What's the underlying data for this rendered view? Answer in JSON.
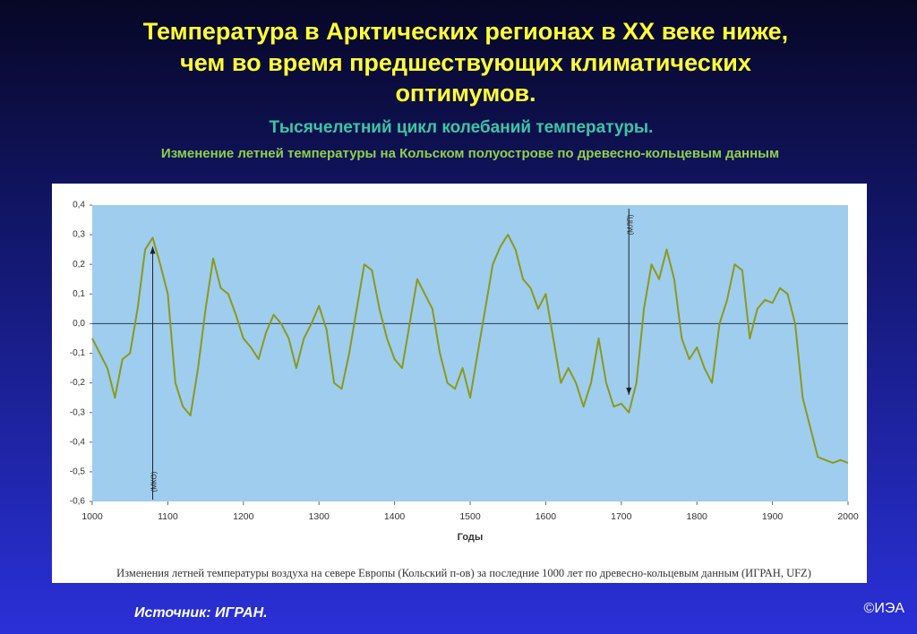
{
  "chart_data": {
    "type": "line",
    "title": [
      "Температура в Арктических регионах в XX веке ниже,",
      "чем во время предшествующих климатических",
      "оптимумов."
    ],
    "subtitle": "Тысячелетний цикл колебаний температуры.",
    "subtitle2": "Изменение летней температуры на Кольском полуострове по древесно-кольцевым данным",
    "xlabel": "Годы",
    "caption": "Изменения летней температуры воздуха на севере Европы (Кольский п-ов) за последние 1000 лет по древесно-кольцевым данным (ИГРАН, UFZ)",
    "source": "Источник: ИГРАН.",
    "copyright": "©ИЭА",
    "x": [
      1000,
      1010,
      1020,
      1030,
      1040,
      1050,
      1060,
      1070,
      1080,
      1090,
      1100,
      1110,
      1120,
      1130,
      1140,
      1150,
      1160,
      1170,
      1180,
      1190,
      1200,
      1210,
      1220,
      1230,
      1240,
      1250,
      1260,
      1270,
      1280,
      1290,
      1300,
      1310,
      1320,
      1330,
      1340,
      1350,
      1360,
      1370,
      1380,
      1390,
      1400,
      1410,
      1420,
      1430,
      1440,
      1450,
      1460,
      1470,
      1480,
      1490,
      1500,
      1510,
      1520,
      1530,
      1540,
      1550,
      1560,
      1570,
      1580,
      1590,
      1600,
      1610,
      1620,
      1630,
      1640,
      1650,
      1660,
      1670,
      1680,
      1690,
      1700,
      1710,
      1720,
      1730,
      1740,
      1750,
      1760,
      1770,
      1780,
      1790,
      1800,
      1810,
      1820,
      1830,
      1840,
      1850,
      1860,
      1870,
      1880,
      1890,
      1900,
      1910,
      1920,
      1930,
      1940,
      1950,
      1960,
      1970,
      1980,
      1990,
      2000
    ],
    "series": [
      {
        "color": "#8a9a1c",
        "values": [
          -0.05,
          -0.1,
          -0.15,
          -0.25,
          -0.12,
          -0.1,
          0.05,
          0.25,
          0.29,
          0.2,
          0.1,
          -0.2,
          -0.28,
          -0.31,
          -0.15,
          0.05,
          0.22,
          0.12,
          0.1,
          0.03,
          -0.05,
          -0.08,
          -0.12,
          -0.03,
          0.03,
          0.0,
          -0.05,
          -0.15,
          -0.05,
          0.0,
          0.06,
          -0.02,
          -0.2,
          -0.22,
          -0.1,
          0.05,
          0.2,
          0.18,
          0.05,
          -0.05,
          -0.12,
          -0.15,
          0.0,
          0.15,
          0.1,
          0.05,
          -0.1,
          -0.2,
          -0.22,
          -0.15,
          -0.25,
          -0.1,
          0.05,
          0.2,
          0.26,
          0.3,
          0.25,
          0.15,
          0.12,
          0.05,
          0.1,
          -0.05,
          -0.2,
          -0.15,
          -0.2,
          -0.28,
          -0.2,
          -0.05,
          -0.2,
          -0.28,
          -0.27,
          -0.3,
          -0.2,
          0.05,
          0.2,
          0.15,
          0.25,
          0.15,
          -0.05,
          -0.12,
          -0.08,
          -0.15,
          -0.2,
          0.0,
          0.08,
          0.2,
          0.18,
          -0.05,
          0.05,
          0.08,
          0.07,
          0.12,
          0.1,
          0.0,
          -0.25,
          -0.35,
          -0.45,
          -0.46,
          -0.47,
          -0.46,
          -0.47
        ]
      }
    ],
    "xlim": [
      1000,
      2000
    ],
    "xticks": [
      1000,
      1100,
      1200,
      1300,
      1400,
      1500,
      1600,
      1700,
      1800,
      1900,
      2000
    ],
    "ylim": [
      -0.6,
      0.4
    ],
    "yticks": [
      {
        "value": -0.6,
        "label": "-0,6"
      },
      {
        "value": -0.5,
        "label": "-0,5"
      },
      {
        "value": -0.4,
        "label": "-0,4"
      },
      {
        "value": -0.3,
        "label": "-0,3"
      },
      {
        "value": -0.2,
        "label": "-0,2"
      },
      {
        "value": -0.1,
        "label": "-0,1"
      },
      {
        "value": 0,
        "label": "0,0"
      },
      {
        "value": 0.1,
        "label": "0,1"
      },
      {
        "value": 0.2,
        "label": "0,2"
      },
      {
        "value": 0.3,
        "label": "0,3"
      },
      {
        "value": 0.4,
        "label": "0,4"
      }
    ],
    "annotations": [
      {
        "text": "(МКО)",
        "x": 1080,
        "y": 0.26
      },
      {
        "text": "(МЛП)",
        "x": 1710,
        "y": -0.24
      }
    ]
  }
}
